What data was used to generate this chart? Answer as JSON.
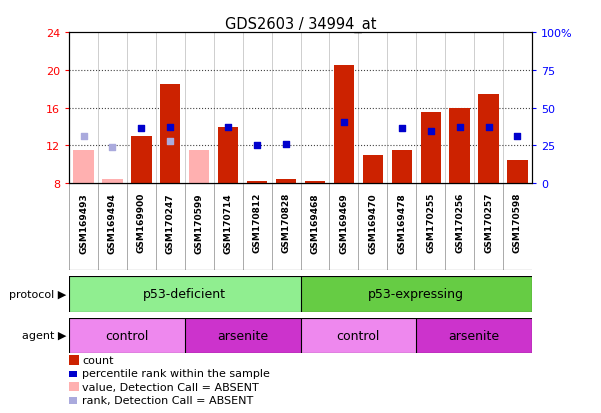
{
  "title": "GDS2603 / 34994_at",
  "samples": [
    "GSM169493",
    "GSM169494",
    "GSM169900",
    "GSM170247",
    "GSM170599",
    "GSM170714",
    "GSM170812",
    "GSM170828",
    "GSM169468",
    "GSM169469",
    "GSM169470",
    "GSM169478",
    "GSM170255",
    "GSM170256",
    "GSM170257",
    "GSM170598"
  ],
  "count_values": [
    null,
    null,
    13.0,
    18.5,
    null,
    14.0,
    8.2,
    8.5,
    8.2,
    20.5,
    11.0,
    11.5,
    15.5,
    16.0,
    17.5,
    10.5
  ],
  "count_absent": [
    11.5,
    8.5,
    null,
    null,
    11.5,
    null,
    null,
    null,
    null,
    null,
    null,
    null,
    null,
    null,
    null,
    null
  ],
  "percentile_values": [
    null,
    null,
    13.8,
    14.0,
    null,
    14.0,
    12.0,
    12.2,
    null,
    14.5,
    null,
    13.8,
    13.5,
    14.0,
    14.0,
    13.0
  ],
  "percentile_absent": [
    13.0,
    11.8,
    null,
    12.5,
    null,
    null,
    null,
    null,
    null,
    null,
    null,
    null,
    null,
    null,
    null,
    null
  ],
  "ylim": [
    8,
    24
  ],
  "y_ticks_left": [
    8,
    12,
    16,
    20,
    24
  ],
  "y_ticks_right": [
    0,
    25,
    50,
    75,
    100
  ],
  "protocol_groups": [
    {
      "label": "p53-deficient",
      "start": 0,
      "end": 8,
      "color": "#90ee90"
    },
    {
      "label": "p53-expressing",
      "start": 8,
      "end": 16,
      "color": "#66cc44"
    }
  ],
  "agent_groups": [
    {
      "label": "control",
      "start": 0,
      "end": 4,
      "color": "#ee88ee"
    },
    {
      "label": "arsenite",
      "start": 4,
      "end": 8,
      "color": "#cc33cc"
    },
    {
      "label": "control",
      "start": 8,
      "end": 12,
      "color": "#ee88ee"
    },
    {
      "label": "arsenite",
      "start": 12,
      "end": 16,
      "color": "#cc33cc"
    }
  ],
  "bar_color_present": "#cc2200",
  "bar_color_absent": "#ffb0b0",
  "dot_color_present": "#0000cc",
  "dot_color_absent": "#aaaadd",
  "col_bg": "#d0d0d0",
  "plot_bg": "#ffffff",
  "dotted_line_color": "#444444",
  "legend_items": [
    {
      "color": "#cc2200",
      "type": "rect",
      "label": "count"
    },
    {
      "color": "#0000cc",
      "type": "square",
      "label": "percentile rank within the sample"
    },
    {
      "color": "#ffb0b0",
      "type": "rect",
      "label": "value, Detection Call = ABSENT"
    },
    {
      "color": "#aaaadd",
      "type": "square",
      "label": "rank, Detection Call = ABSENT"
    }
  ]
}
